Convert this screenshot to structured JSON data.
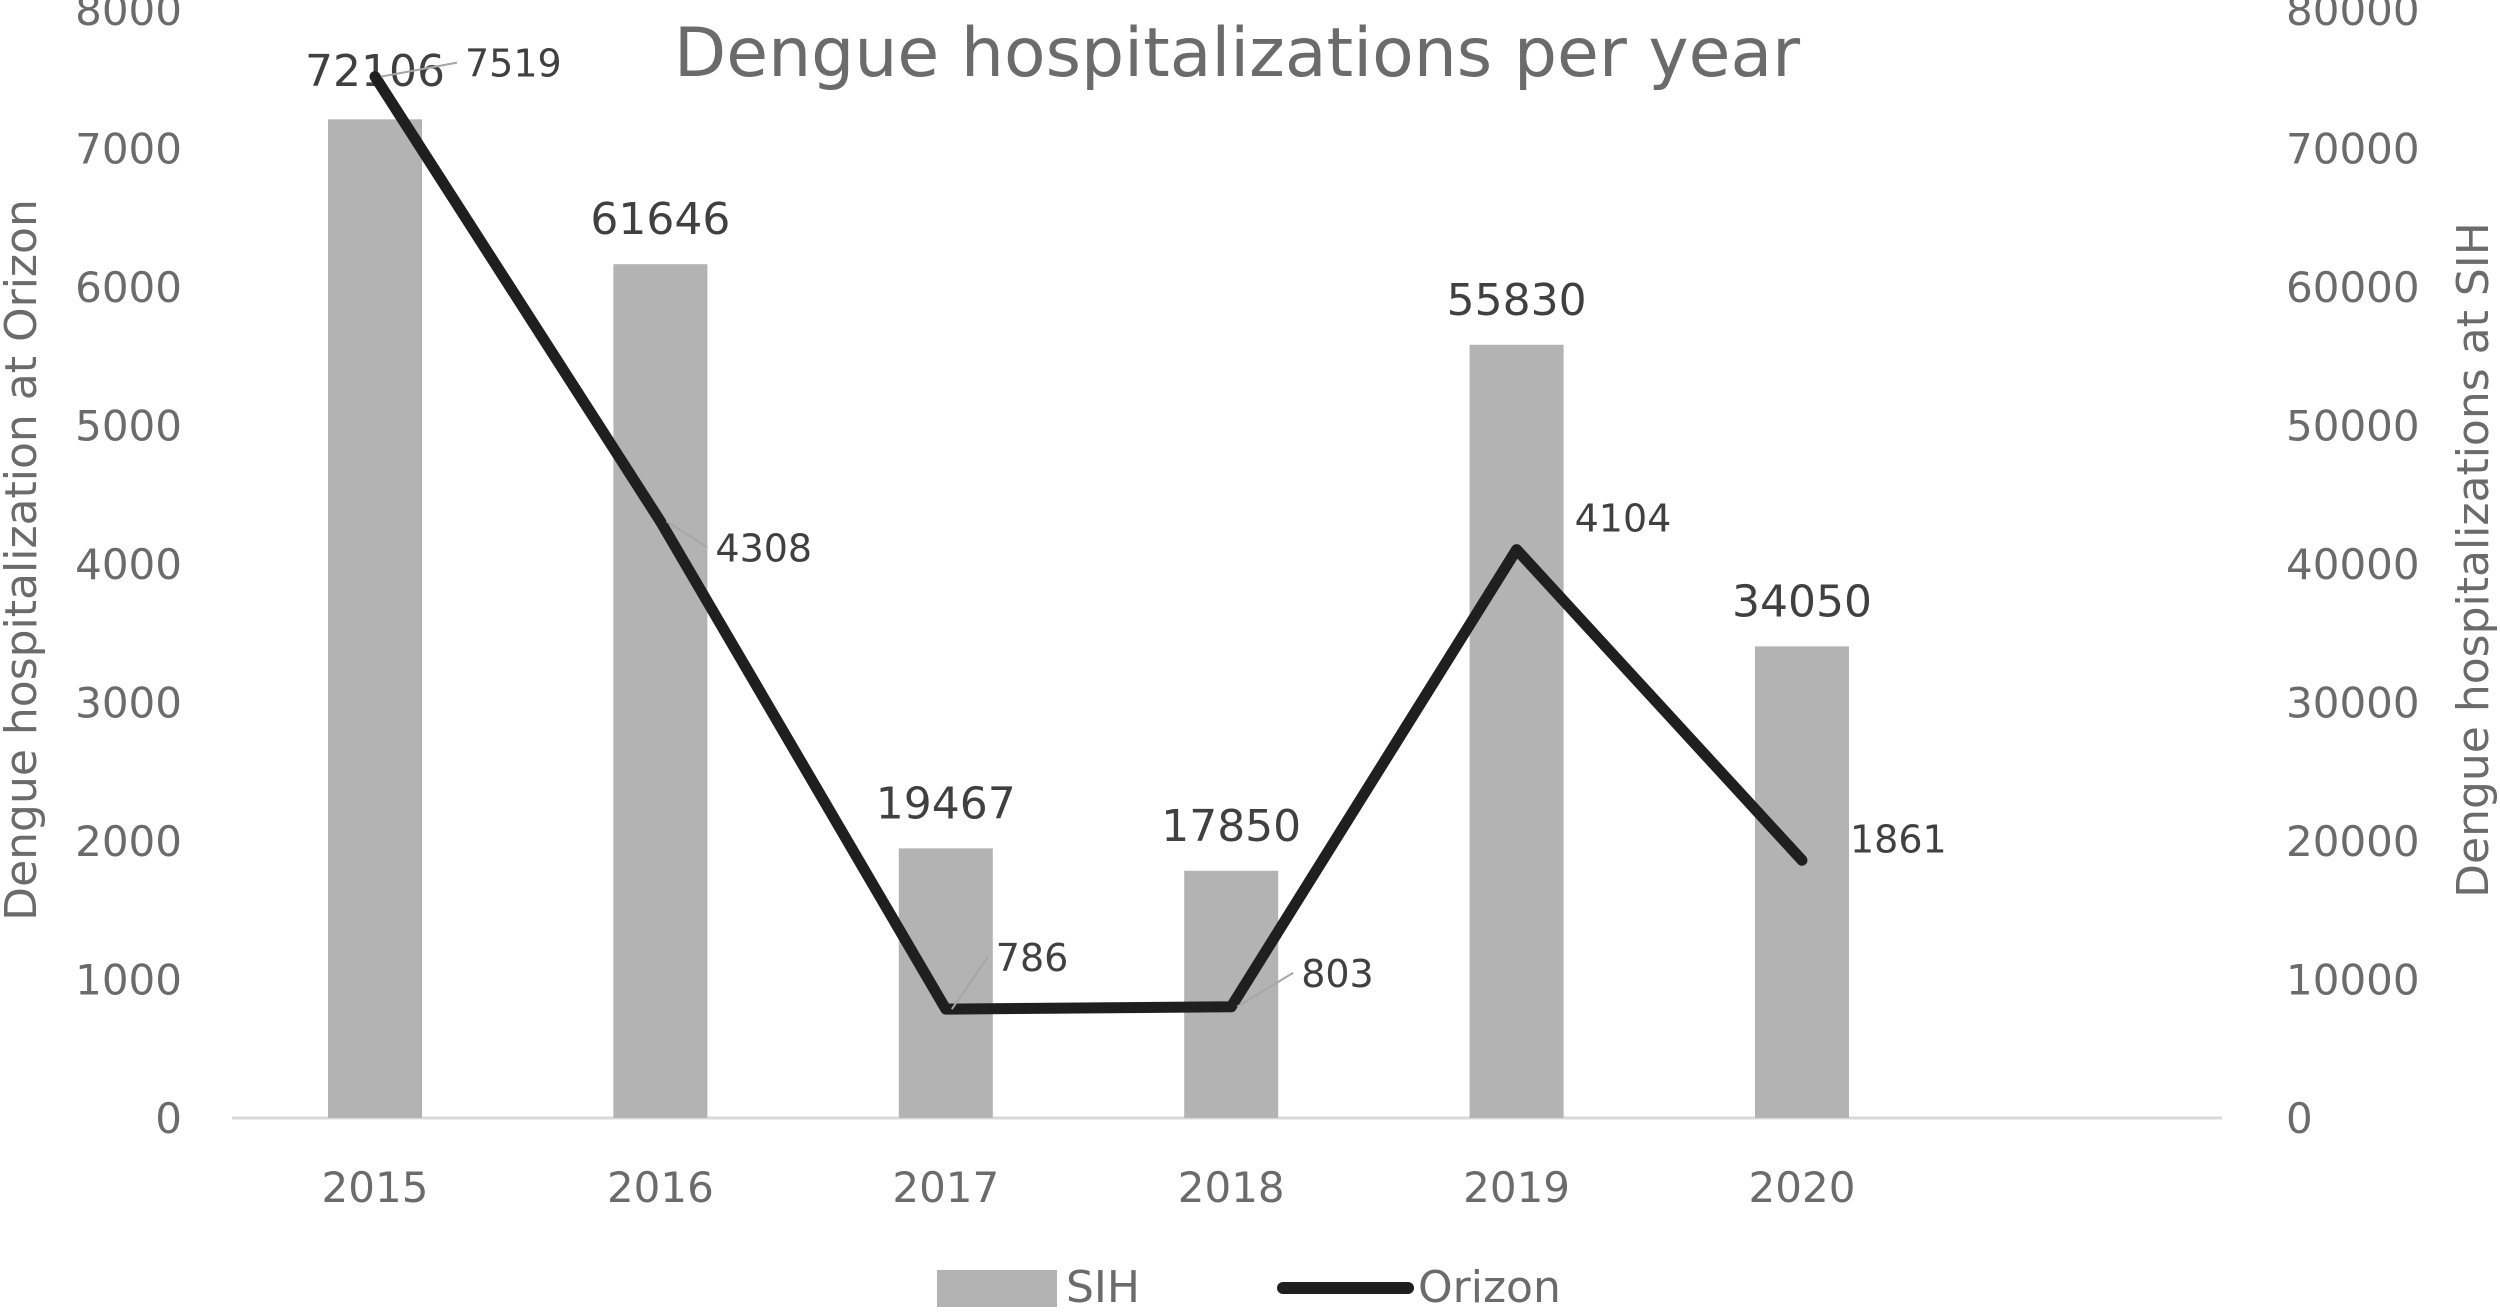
{
  "chart_data": {
    "type": "bar",
    "title": "Dengue hospitalizations per year",
    "categories": [
      "2015",
      "2016",
      "2017",
      "2018",
      "2019",
      "2020"
    ],
    "series": [
      {
        "name": "SIH",
        "type": "bar",
        "axis": "right",
        "color": "#b3b3b3",
        "values": [
          72106,
          61646,
          19467,
          17850,
          55830,
          34050
        ]
      },
      {
        "name": "Orizon",
        "type": "line",
        "axis": "left",
        "color": "#1f1f1f",
        "values": [
          7519,
          4308,
          786,
          803,
          4104,
          1861
        ]
      }
    ],
    "y_left": {
      "label": "Dengue hospitalization at Orizon",
      "ylim": [
        0,
        8000
      ],
      "ticks": [
        "0",
        "1000",
        "2000",
        "3000",
        "4000",
        "5000",
        "6000",
        "7000",
        "8000"
      ]
    },
    "y_right": {
      "label": "Dengue hospitalizations at SIH",
      "ylim": [
        0,
        80000
      ],
      "ticks": [
        "0",
        "10000",
        "20000",
        "30000",
        "40000",
        "50000",
        "60000",
        "70000",
        "80000"
      ]
    },
    "legend": {
      "position": "bottom",
      "items": [
        "SIH",
        "Orizon"
      ]
    },
    "grid": false
  }
}
